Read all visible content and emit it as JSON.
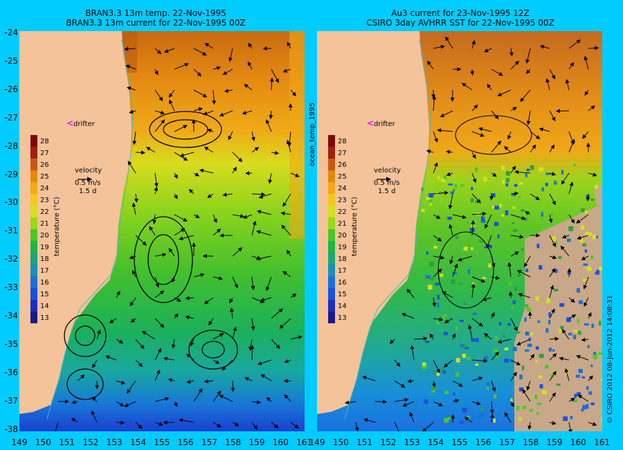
{
  "left_panel": {
    "title_line1": "BRAN3.3 13m temp. 22-Nov-1995",
    "title_line2": "BRAN3.3 13m current for 22-Nov-1995 00Z",
    "drifter_label": "drifter",
    "velocity_label": "velocity",
    "velocity_scale": "0.5 m/s",
    "velocity_time": "1.5 d",
    "colorbar_label": "temperature (°C)"
  },
  "right_panel": {
    "title_line1": "Au3 current for 23-Nov-1995 12Z",
    "title_line2": "CSIRO 3day AVHRR SST for 22-Nov-1995 00Z",
    "drifter_label": "drifter",
    "velocity_label": "velocity",
    "velocity_scale": "0.5 m/s",
    "velocity_time": "1.5 d",
    "colorbar_label": "temperature (°C)"
  },
  "side_label": "ocean_temp_1995",
  "copyright": "© CSIRO 2012  08-Jun-2012 14:08:31",
  "colorbar_ticks": [
    "28",
    "27",
    "26",
    "25",
    "24",
    "23",
    "22",
    "21",
    "20",
    "19",
    "18",
    "17",
    "16",
    "15",
    "14",
    "13"
  ],
  "colorbar_colors": [
    "#7a0a0a",
    "#a0200e",
    "#c45a10",
    "#e08a12",
    "#f0a818",
    "#f2c81e",
    "#d6e01e",
    "#9cd81c",
    "#4cc828",
    "#1ab842",
    "#18a878",
    "#1890b8",
    "#1a70d8",
    "#1a50e0",
    "#1a30c0",
    "#1a1a90"
  ],
  "lat_labels": [
    "-24",
    "-25",
    "-26",
    "-27",
    "-28",
    "-29",
    "-30",
    "-31",
    "-32",
    "-33",
    "-34",
    "-35",
    "-36",
    "-37",
    "-38"
  ],
  "lon_labels": [
    "149",
    "150",
    "151",
    "152",
    "153",
    "154",
    "155",
    "156",
    "157",
    "158",
    "159",
    "160",
    "161"
  ],
  "colors": {
    "background": "#00ccff",
    "land": "#f5c39a",
    "cloud": "#c8a888",
    "drifter_marker": "#ff00ff",
    "coastline_contour": "#4ab8b8"
  }
}
